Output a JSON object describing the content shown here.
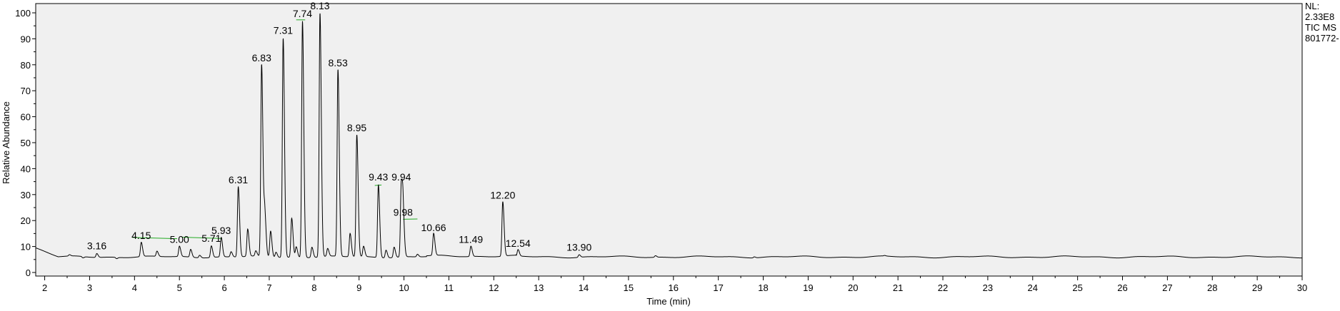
{
  "chart_data": {
    "type": "line",
    "xlabel": "Time (min)",
    "ylabel": "Relative Abundance",
    "xlim": [
      1.8,
      30
    ],
    "ylim": [
      0,
      100
    ],
    "x_ticks": [
      2,
      3,
      4,
      5,
      6,
      7,
      8,
      9,
      10,
      11,
      12,
      13,
      14,
      15,
      16,
      17,
      18,
      19,
      20,
      21,
      22,
      23,
      24,
      25,
      26,
      27,
      28,
      29,
      30
    ],
    "y_ticks": [
      0,
      10,
      20,
      30,
      40,
      50,
      60,
      70,
      80,
      90,
      100
    ],
    "side_notes": [
      "NL:",
      "2.33E8",
      "TIC  MS",
      "801772-"
    ],
    "baseline": 6,
    "peaks": [
      {
        "label": "3.16",
        "x": 3.16,
        "y": 7.5
      },
      {
        "label": "4.15",
        "x": 4.15,
        "y": 11.5
      },
      {
        "label": "5.00",
        "x": 5.0,
        "y": 10
      },
      {
        "label": "5.71",
        "x": 5.71,
        "y": 10.5
      },
      {
        "label": "5.93",
        "x": 5.93,
        "y": 13.5
      },
      {
        "label": "6.31",
        "x": 6.31,
        "y": 33
      },
      {
        "label": "6.83",
        "x": 6.83,
        "y": 80
      },
      {
        "label": "7.31",
        "x": 7.31,
        "y": 90.5
      },
      {
        "label": "7.74",
        "x": 7.74,
        "y": 97
      },
      {
        "label": "8.13",
        "x": 8.13,
        "y": 100
      },
      {
        "label": "8.53",
        "x": 8.53,
        "y": 78
      },
      {
        "label": "8.95",
        "x": 8.95,
        "y": 53
      },
      {
        "label": "9.43",
        "x": 9.43,
        "y": 34
      },
      {
        "label": "9.94",
        "x": 9.94,
        "y": 34
      },
      {
        "label": "9.98",
        "x": 9.98,
        "y": 20.5
      },
      {
        "label": "10.66",
        "x": 10.66,
        "y": 14.5
      },
      {
        "label": "11.49",
        "x": 11.49,
        "y": 10
      },
      {
        "label": "12.20",
        "x": 12.2,
        "y": 27
      },
      {
        "label": "12.54",
        "x": 12.54,
        "y": 8.5
      },
      {
        "label": "13.90",
        "x": 13.9,
        "y": 7
      }
    ],
    "minor_peaks": [
      {
        "x": 2.55,
        "y": 6.5
      },
      {
        "x": 2.85,
        "y": 5.5
      },
      {
        "x": 3.6,
        "y": 5.5
      },
      {
        "x": 4.5,
        "y": 8
      },
      {
        "x": 5.25,
        "y": 9
      },
      {
        "x": 5.45,
        "y": 7
      },
      {
        "x": 6.15,
        "y": 8
      },
      {
        "x": 6.52,
        "y": 16.5
      },
      {
        "x": 6.7,
        "y": 8
      },
      {
        "x": 6.9,
        "y": 22.5
      },
      {
        "x": 7.03,
        "y": 16
      },
      {
        "x": 7.15,
        "y": 8
      },
      {
        "x": 7.5,
        "y": 21
      },
      {
        "x": 7.6,
        "y": 10
      },
      {
        "x": 7.95,
        "y": 10
      },
      {
        "x": 8.3,
        "y": 9
      },
      {
        "x": 8.8,
        "y": 15
      },
      {
        "x": 9.1,
        "y": 10
      },
      {
        "x": 9.6,
        "y": 9
      },
      {
        "x": 9.78,
        "y": 10
      },
      {
        "x": 10.3,
        "y": 7
      },
      {
        "x": 15.6,
        "y": 6.6
      },
      {
        "x": 17.8,
        "y": 6.4
      },
      {
        "x": 20.7,
        "y": 6.2
      }
    ]
  }
}
